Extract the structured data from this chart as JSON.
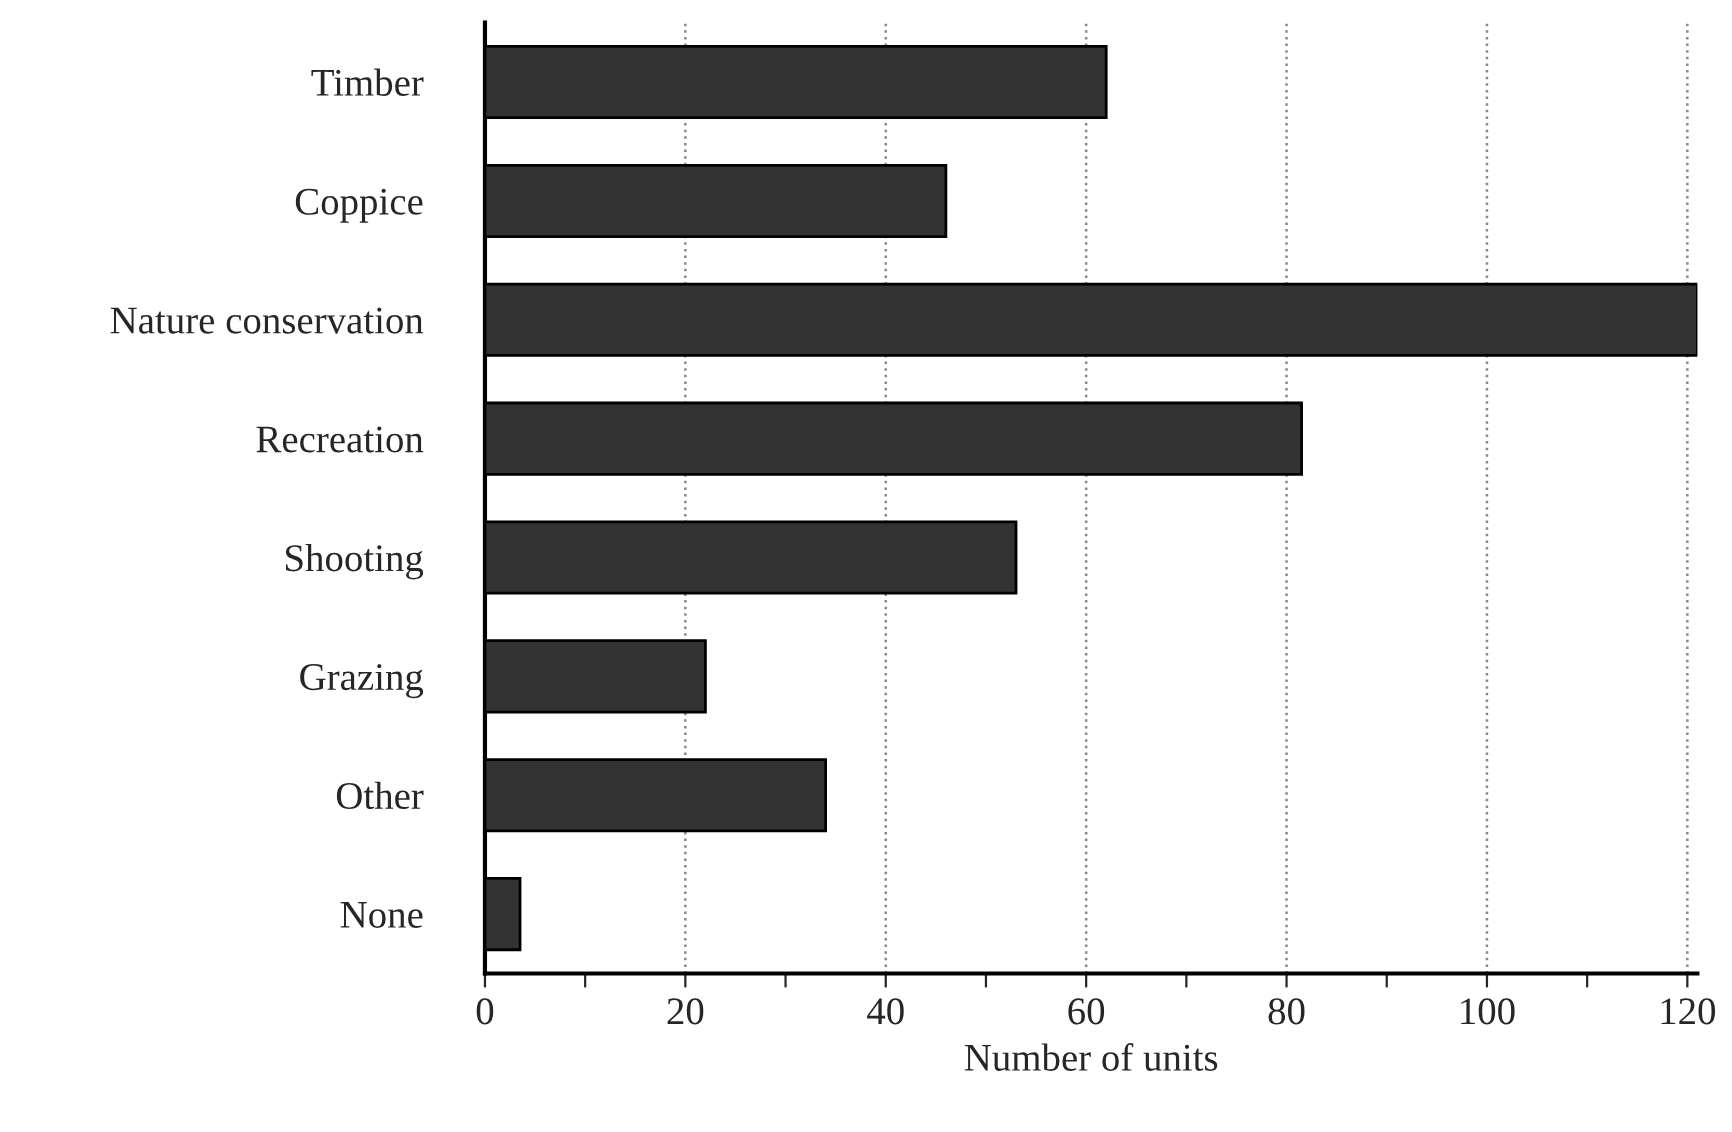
{
  "chart_data": {
    "type": "bar",
    "orientation": "horizontal",
    "xlabel": "Number of units",
    "categories": [
      "Timber",
      "Coppice",
      "Nature conservation",
      "Recreation",
      "Shooting",
      "Grazing",
      "Other",
      "None"
    ],
    "values": [
      62,
      46,
      121,
      81.5,
      53,
      22,
      34,
      3.5
    ],
    "color": "#333333",
    "xlim": [
      0,
      121
    ],
    "xticks": [
      0,
      {
        "value": 10,
        "label": null
      },
      20,
      {
        "value": 30,
        "label": null
      },
      40,
      {
        "value": 50,
        "label": null
      },
      60,
      {
        "value": 70,
        "label": null
      },
      80,
      {
        "value": 90,
        "label": null
      },
      100,
      {
        "value": 110,
        "label": null
      },
      120
    ],
    "grid": "x"
  }
}
